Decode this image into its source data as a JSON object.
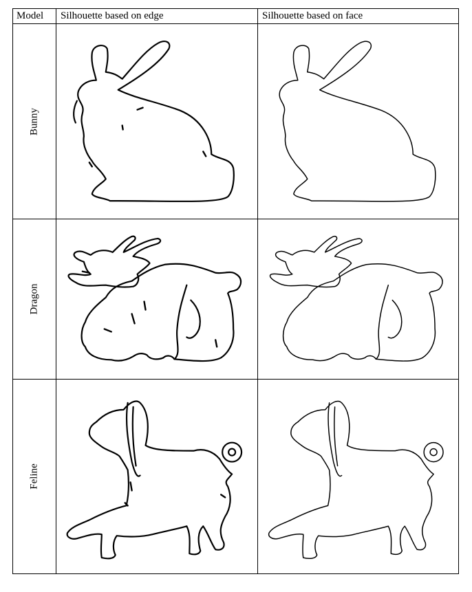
{
  "table": {
    "headers": {
      "model": "Model",
      "edge": "Silhouette based on edge",
      "face": "Silhouette based on face"
    },
    "rows": [
      {
        "label": "Bunny"
      },
      {
        "label": "Dragon"
      },
      {
        "label": "Feline"
      }
    ]
  }
}
